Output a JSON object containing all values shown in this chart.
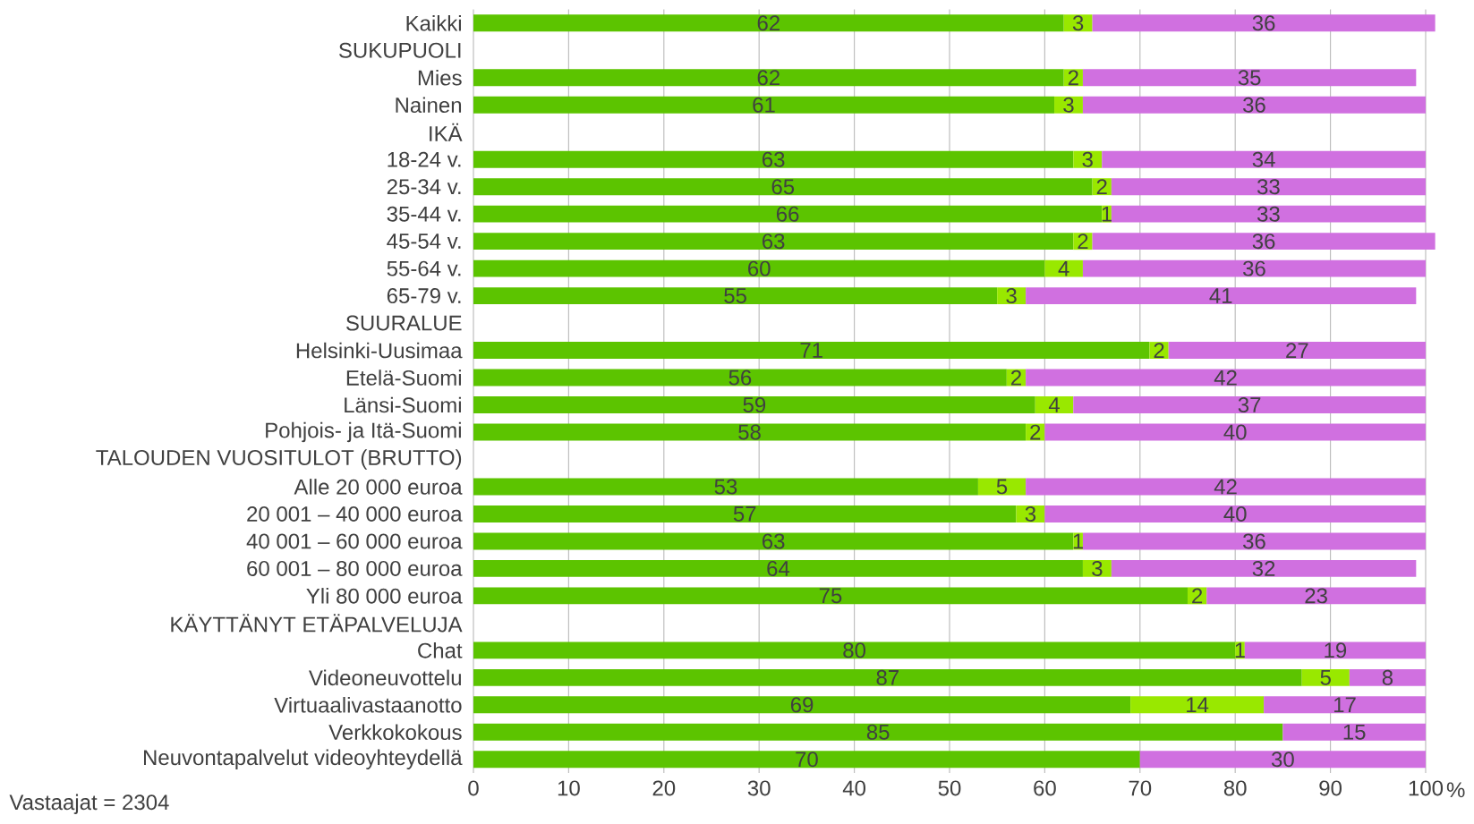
{
  "chart_data": {
    "type": "bar",
    "orientation": "horizontal",
    "stacked": true,
    "data_labels": true,
    "grid": "x",
    "xlabel": "%",
    "xlim": [
      0,
      101
    ],
    "xticks": [
      0,
      10,
      20,
      30,
      40,
      50,
      60,
      70,
      80,
      90,
      100
    ],
    "annotations": [
      "Vastaajat = 2304"
    ],
    "categories": [
      "Kaikki",
      "SUKUPUOLI",
      "Mies",
      "Nainen",
      "IKÄ",
      "18-24 v.",
      "25-34 v.",
      "35-44 v.",
      "45-54 v.",
      "55-64 v.",
      "65-79 v.",
      "SUURALUE",
      "Helsinki-Uusimaa",
      "Etelä-Suomi",
      "Länsi-Suomi",
      "Pohjois- ja Itä-Suomi",
      "TALOUDEN VUOSITULOT (BRUTTO)",
      "Alle 20 000 euroa",
      "20 001 – 40 000 euroa",
      "40 001 – 60 000 euroa",
      "60 001 – 80 000 euroa",
      "Yli 80 000 euroa",
      "KÄYTTÄNYT ETÄPALVELUJA",
      "Chat",
      "Videoneuvottelu",
      "Virtuaalivastaanotto",
      "Verkkokokous",
      "Neuvontapalvelut videoyhteydellä"
    ],
    "series": [
      {
        "color": "#5cc400",
        "values": [
          62,
          null,
          62,
          61,
          null,
          63,
          65,
          66,
          63,
          60,
          55,
          null,
          71,
          56,
          59,
          58,
          null,
          53,
          57,
          63,
          64,
          75,
          null,
          80,
          87,
          69,
          85,
          70
        ]
      },
      {
        "color": "#99e800",
        "values": [
          3,
          null,
          2,
          3,
          null,
          3,
          2,
          1,
          2,
          4,
          3,
          null,
          2,
          2,
          4,
          2,
          null,
          5,
          3,
          1,
          3,
          2,
          null,
          1,
          5,
          14,
          null,
          null
        ]
      },
      {
        "color": "#d070e0",
        "values": [
          36,
          null,
          35,
          36,
          null,
          34,
          33,
          33,
          36,
          36,
          41,
          null,
          27,
          42,
          37,
          40,
          null,
          42,
          40,
          36,
          32,
          23,
          null,
          19,
          8,
          17,
          15,
          30
        ]
      }
    ]
  }
}
